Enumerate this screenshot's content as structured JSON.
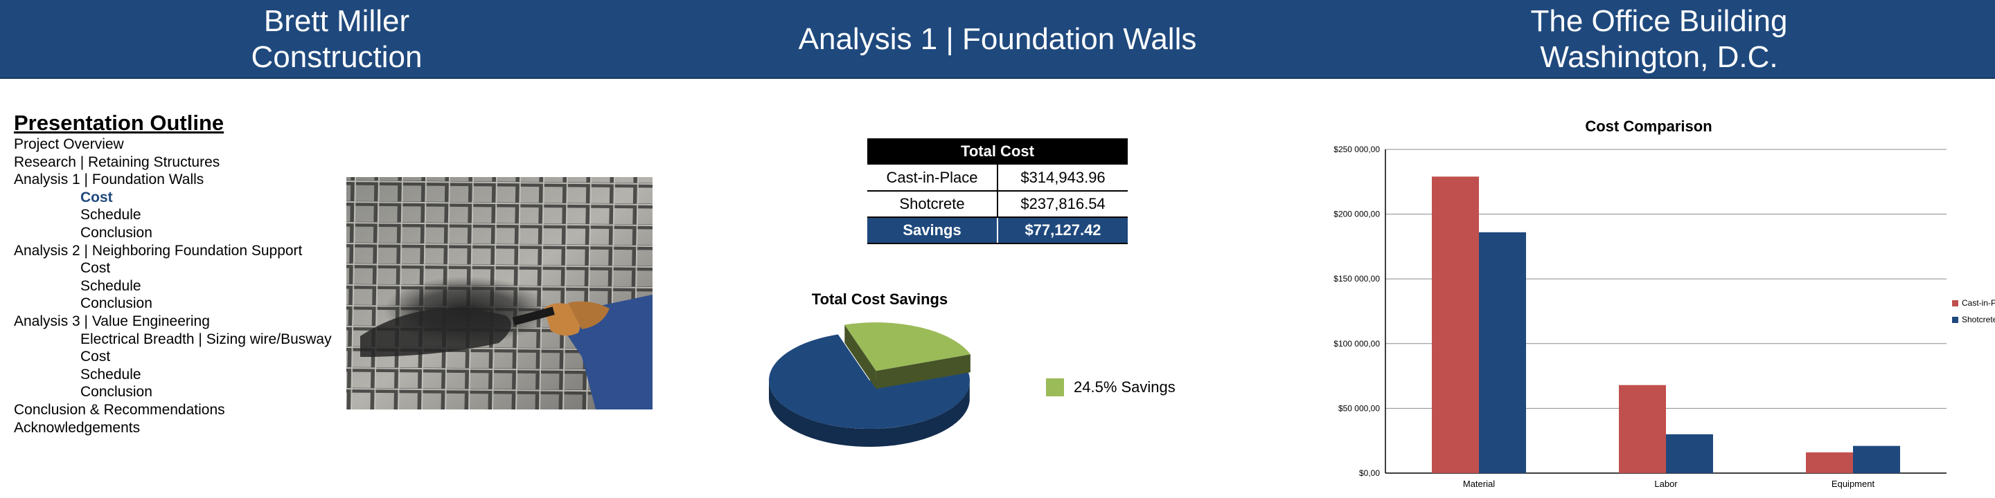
{
  "header": {
    "company_line1": "Brett Miller",
    "company_line2": "Construction",
    "title": "Analysis 1 | Foundation Walls",
    "building_line1": "The Office Building",
    "building_line2": "Washington, D.C."
  },
  "outline": {
    "title": "Presentation Outline",
    "items": [
      {
        "text": "Project Overview",
        "level": 0
      },
      {
        "text": "Research | Retaining Structures",
        "level": 0
      },
      {
        "text": "Analysis 1 | Foundation Walls",
        "level": 0
      },
      {
        "text": "Cost",
        "level": 1,
        "active": true
      },
      {
        "text": "Schedule",
        "level": 1
      },
      {
        "text": "Conclusion",
        "level": 1
      },
      {
        "text": "Analysis 2 | Neighboring Foundation Support",
        "level": 0
      },
      {
        "text": "Cost",
        "level": 1
      },
      {
        "text": "Schedule",
        "level": 1
      },
      {
        "text": "Conclusion",
        "level": 1
      },
      {
        "text": "Analysis 3 | Value Engineering",
        "level": 0
      },
      {
        "text": "Electrical Breadth | Sizing wire/Busway",
        "level": 1
      },
      {
        "text": "Cost",
        "level": 1
      },
      {
        "text": "Schedule",
        "level": 1
      },
      {
        "text": "Conclusion",
        "level": 1
      },
      {
        "text": "Conclusion & Recommendations",
        "level": 0
      },
      {
        "text": "Acknowledgements",
        "level": 0
      }
    ]
  },
  "cost_table": {
    "header": "Total Cost",
    "rows": [
      {
        "label": "Cast-in-Place",
        "value": "$314,943.96"
      },
      {
        "label": "Shotcrete",
        "value": "$237,816.54"
      }
    ],
    "savings": {
      "label": "Savings",
      "value": "$77,127.42"
    }
  },
  "colors": {
    "header_bg": "#1f497d",
    "cast_in_place": "#c0504d",
    "shotcrete": "#1f497d",
    "savings": "#9bbb59"
  },
  "chart_data": [
    {
      "type": "pie",
      "title": "Total Cost Savings",
      "slices": [
        {
          "name": "",
          "value": 75.5,
          "color": "#1f497d"
        },
        {
          "name": "24.5% Savings",
          "value": 24.5,
          "color": "#9bbb59"
        }
      ],
      "legend_position": "right"
    },
    {
      "type": "bar",
      "title": "Cost Comparison",
      "categories": [
        "Material",
        "Labor",
        "Equipment"
      ],
      "series": [
        {
          "name": "Cast-in-Place",
          "values": [
            229000,
            68000,
            16000
          ],
          "color": "#c0504d"
        },
        {
          "name": "Shotcrete",
          "values": [
            186000,
            30000,
            21000
          ],
          "color": "#1f497d"
        }
      ],
      "ylim": [
        0,
        250000
      ],
      "yticks": [
        "$0,00",
        "$50 000,00",
        "$100 000,00",
        "$150 000,00",
        "$200 000,00",
        "$250 000,00"
      ],
      "grid": true,
      "legend_position": "right"
    }
  ]
}
